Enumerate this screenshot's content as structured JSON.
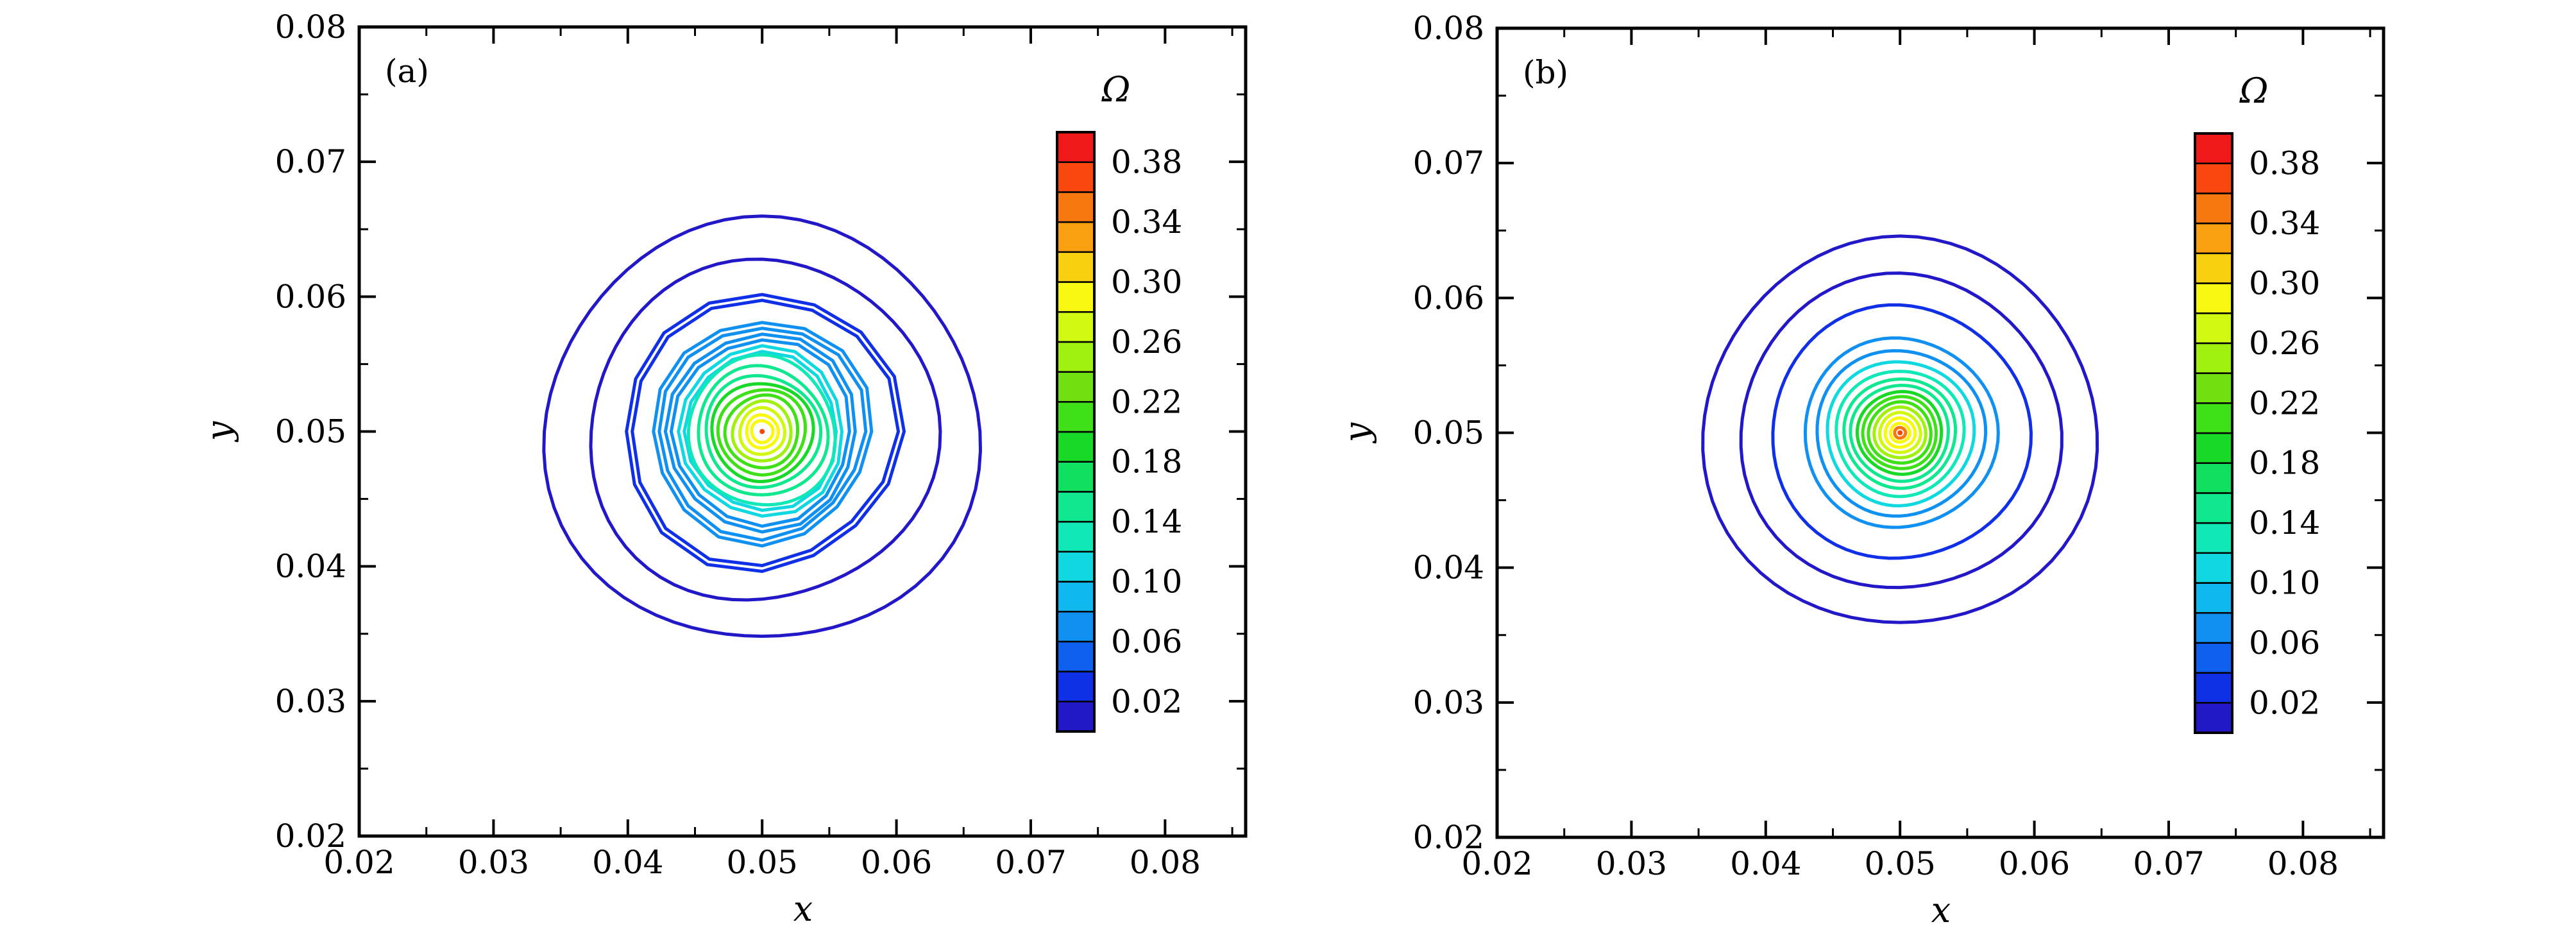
{
  "chart_data": [
    {
      "type": "contour",
      "panel_label": "(a)",
      "xlabel": "x",
      "ylabel": "y",
      "xlim": [
        0.02,
        0.086
      ],
      "ylim": [
        0.02,
        0.08
      ],
      "xticks": [
        "0.02",
        "0.03",
        "0.04",
        "0.05",
        "0.06",
        "0.07",
        "0.08"
      ],
      "yticks": [
        "0.02",
        "0.03",
        "0.04",
        "0.05",
        "0.06",
        "0.07",
        "0.08"
      ],
      "colorbar": {
        "title": "Ω",
        "range": [
          0.0,
          0.4
        ],
        "ticks": [
          "0.02",
          "0.06",
          "0.10",
          "0.14",
          "0.18",
          "0.22",
          "0.26",
          "0.30",
          "0.34",
          "0.38"
        ]
      },
      "center": [
        0.05,
        0.05
      ],
      "contour_radii": [
        0.0159,
        0.0128,
        0.0103,
        0.0082,
        0.0072,
        0.0062,
        0.0055,
        0.0048,
        0.0042,
        0.0037,
        0.0032,
        0.0027,
        0.0022,
        0.0017,
        0.0012,
        0.0008
      ],
      "contour_levels": [
        0.01,
        0.02,
        0.04,
        0.06,
        0.08,
        0.1,
        0.12,
        0.14,
        0.16,
        0.18,
        0.2,
        0.22,
        0.24,
        0.26,
        0.28,
        0.3
      ],
      "irregular": true
    },
    {
      "type": "contour",
      "panel_label": "(b)",
      "xlabel": "x",
      "ylabel": "y",
      "xlim": [
        0.02,
        0.086
      ],
      "ylim": [
        0.02,
        0.08
      ],
      "xticks": [
        "0.02",
        "0.03",
        "0.04",
        "0.05",
        "0.06",
        "0.07",
        "0.08"
      ],
      "yticks": [
        "0.02",
        "0.03",
        "0.04",
        "0.05",
        "0.06",
        "0.07",
        "0.08"
      ],
      "colorbar": {
        "title": "Ω",
        "range": [
          0.0,
          0.4
        ],
        "ticks": [
          "0.02",
          "0.06",
          "0.10",
          "0.14",
          "0.18",
          "0.22",
          "0.26",
          "0.30",
          "0.34",
          "0.38"
        ]
      },
      "center": [
        0.05,
        0.05
      ],
      "contour_radii": [
        0.0145,
        0.0118,
        0.0095,
        0.0071,
        0.0062,
        0.0054,
        0.0047,
        0.0041,
        0.0036,
        0.0031,
        0.0027,
        0.0023,
        0.0019,
        0.0015,
        0.0011,
        0.0007,
        0.0004
      ],
      "contour_levels": [
        0.01,
        0.02,
        0.04,
        0.06,
        0.08,
        0.1,
        0.12,
        0.14,
        0.16,
        0.18,
        0.2,
        0.22,
        0.24,
        0.26,
        0.28,
        0.3,
        0.34
      ],
      "irregular": false
    }
  ],
  "colormap": [
    "#2318c8",
    "#1030e8",
    "#1060f0",
    "#1090f0",
    "#10b8f0",
    "#10d8e0",
    "#10e8b8",
    "#10e890",
    "#10e060",
    "#18d828",
    "#40e018",
    "#70e010",
    "#a0f010",
    "#d0f810",
    "#f8f810",
    "#f8d010",
    "#f8a010",
    "#f87810",
    "#f84810",
    "#f01818"
  ]
}
